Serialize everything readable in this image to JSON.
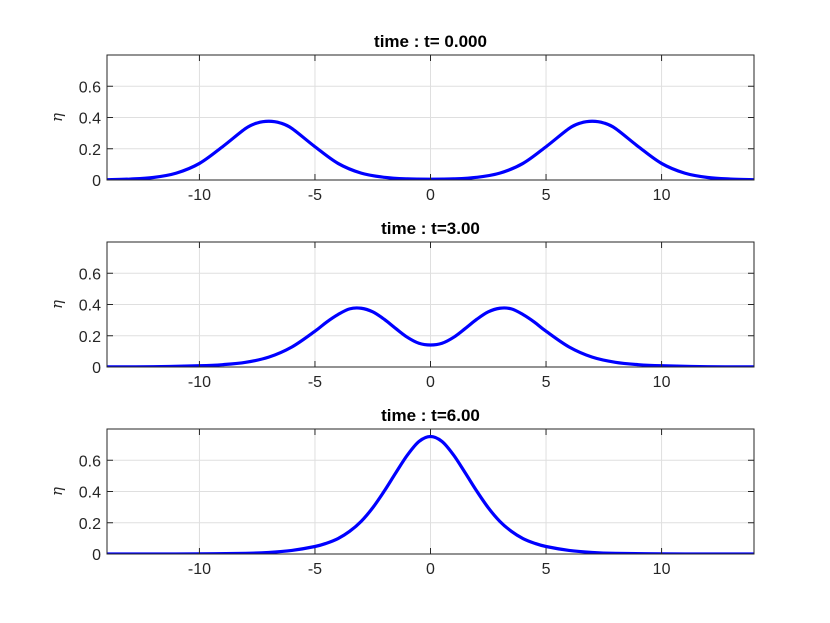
{
  "chart_data": [
    {
      "type": "line",
      "title": "time : t= 0.000",
      "xlabel": "",
      "ylabel": "η",
      "xlim": [
        -14,
        14
      ],
      "ylim": [
        0,
        0.8
      ],
      "xticks": [
        -10,
        -5,
        0,
        5,
        10
      ],
      "xtick_labels": [
        "-10",
        "-5",
        "0",
        "5",
        "10"
      ],
      "yticks": [
        0,
        0.2,
        0.4,
        0.6
      ],
      "ytick_labels": [
        "0",
        "0.2",
        "0.4",
        "0.6"
      ],
      "grid": true,
      "series": [
        {
          "color": "#0000ff",
          "x": [
            -14,
            -13,
            -12,
            -11,
            -10,
            -9,
            -8,
            -7.5,
            -7,
            -6.5,
            -6,
            -5,
            -4,
            -3,
            -2,
            -1,
            0,
            1,
            2,
            3,
            4,
            5,
            6,
            6.5,
            7,
            7.5,
            8,
            9,
            10,
            11,
            12,
            13,
            14
          ],
          "y": [
            0.002,
            0.006,
            0.016,
            0.044,
            0.106,
            0.213,
            0.33,
            0.365,
            0.376,
            0.365,
            0.33,
            0.213,
            0.106,
            0.044,
            0.017,
            0.007,
            0.005,
            0.007,
            0.017,
            0.044,
            0.106,
            0.213,
            0.33,
            0.365,
            0.376,
            0.365,
            0.33,
            0.213,
            0.106,
            0.044,
            0.016,
            0.006,
            0.002
          ]
        }
      ]
    },
    {
      "type": "line",
      "title": "time : t=3.00",
      "xlabel": "",
      "ylabel": "η",
      "xlim": [
        -14,
        14
      ],
      "ylim": [
        0,
        0.8
      ],
      "xticks": [
        -10,
        -5,
        0,
        5,
        10
      ],
      "xtick_labels": [
        "-10",
        "-5",
        "0",
        "5",
        "10"
      ],
      "yticks": [
        0,
        0.2,
        0.4,
        0.6
      ],
      "ytick_labels": [
        "0",
        "0.2",
        "0.4",
        "0.6"
      ],
      "grid": true,
      "series": [
        {
          "color": "#0000ff",
          "x": [
            -14,
            -12,
            -10,
            -9,
            -8,
            -7,
            -6,
            -5,
            -4.5,
            -4,
            -3.5,
            -3,
            -2.5,
            -2,
            -1.5,
            -1,
            -0.5,
            0,
            0.5,
            1,
            1.5,
            2,
            2.5,
            3,
            3.5,
            4,
            4.5,
            5,
            6,
            7,
            8,
            9,
            10,
            12,
            14
          ],
          "y": [
            0.001,
            0.002,
            0.008,
            0.015,
            0.03,
            0.063,
            0.128,
            0.229,
            0.287,
            0.336,
            0.372,
            0.376,
            0.353,
            0.305,
            0.246,
            0.19,
            0.152,
            0.141,
            0.152,
            0.19,
            0.246,
            0.305,
            0.353,
            0.376,
            0.372,
            0.336,
            0.287,
            0.229,
            0.128,
            0.063,
            0.03,
            0.015,
            0.008,
            0.002,
            0.001
          ]
        }
      ]
    },
    {
      "type": "line",
      "title": "time : t=6.00",
      "xlabel": "",
      "ylabel": "η",
      "xlim": [
        -14,
        14
      ],
      "ylim": [
        0,
        0.8
      ],
      "xticks": [
        -10,
        -5,
        0,
        5,
        10
      ],
      "xtick_labels": [
        "-10",
        "-5",
        "0",
        "5",
        "10"
      ],
      "yticks": [
        0,
        0.2,
        0.4,
        0.6
      ],
      "ytick_labels": [
        "0",
        "0.2",
        "0.4",
        "0.6"
      ],
      "grid": true,
      "series": [
        {
          "color": "#0000ff",
          "x": [
            -14,
            -12,
            -10,
            -8,
            -7,
            -6,
            -5,
            -4.5,
            -4,
            -3.5,
            -3,
            -2.5,
            -2,
            -1.5,
            -1,
            -0.5,
            0,
            0.5,
            1,
            1.5,
            2,
            2.5,
            3,
            3.5,
            4,
            4.5,
            5,
            6,
            7,
            8,
            10,
            12,
            14
          ],
          "y": [
            0,
            0,
            0.001,
            0.004,
            0.01,
            0.023,
            0.048,
            0.069,
            0.099,
            0.145,
            0.209,
            0.296,
            0.403,
            0.52,
            0.633,
            0.72,
            0.752,
            0.72,
            0.633,
            0.52,
            0.403,
            0.296,
            0.209,
            0.145,
            0.099,
            0.069,
            0.048,
            0.023,
            0.01,
            0.004,
            0.001,
            0,
            0
          ]
        }
      ]
    }
  ]
}
